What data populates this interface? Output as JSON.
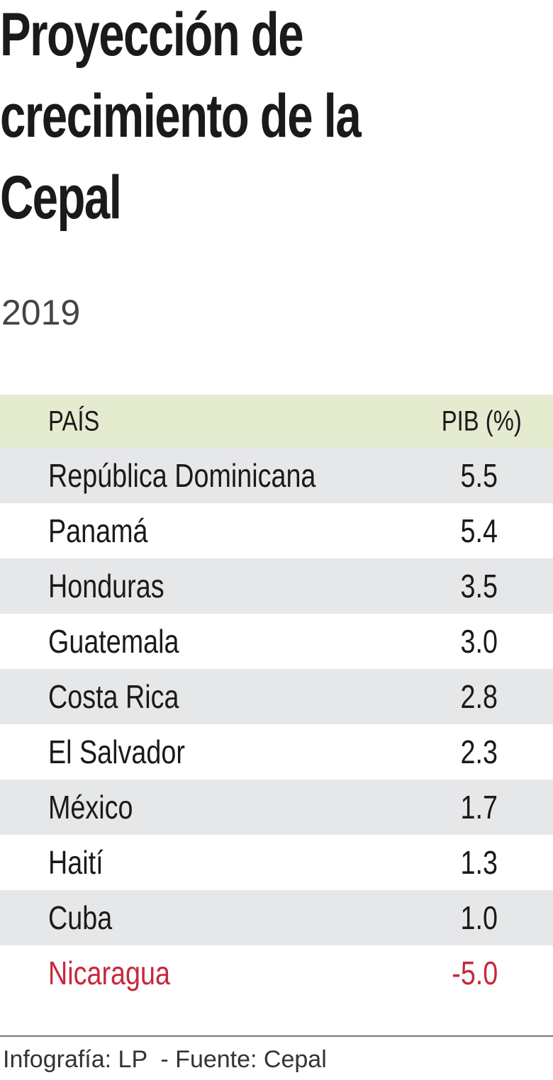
{
  "header": {
    "title": "Proyección de crecimiento de la Cepal",
    "subtitle": "2019"
  },
  "table": {
    "columns": [
      "PAÍS",
      "PIB (%)"
    ],
    "rows": [
      [
        "República Dominicana",
        "5.5"
      ],
      [
        "Panamá",
        "5.4"
      ],
      [
        "Honduras",
        "3.5"
      ],
      [
        "Guatemala",
        "3.0"
      ],
      [
        "Costa Rica",
        "2.8"
      ],
      [
        "El Salvador",
        "2.3"
      ],
      [
        "México",
        "1.7"
      ],
      [
        "Haití",
        "1.3"
      ],
      [
        "Cuba",
        "1.0"
      ],
      [
        "Nicaragua",
        "-5.0"
      ]
    ]
  },
  "footer": {
    "credit": "Infografía: LP  - Fuente: Cepal"
  }
}
